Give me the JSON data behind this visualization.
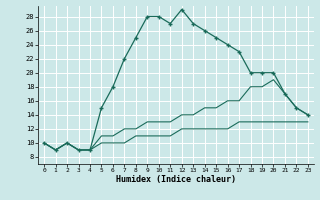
{
  "title": "",
  "xlabel": "Humidex (Indice chaleur)",
  "bg_color": "#cce8e8",
  "grid_color": "#ffffff",
  "line_color": "#1a6b5a",
  "xlim": [
    -0.5,
    23.5
  ],
  "ylim": [
    7,
    29.5
  ],
  "yticks": [
    8,
    10,
    12,
    14,
    16,
    18,
    20,
    22,
    24,
    26,
    28
  ],
  "xticks": [
    0,
    1,
    2,
    3,
    4,
    5,
    6,
    7,
    8,
    9,
    10,
    11,
    12,
    13,
    14,
    15,
    16,
    17,
    18,
    19,
    20,
    21,
    22,
    23
  ],
  "series1_x": [
    0,
    1,
    2,
    3,
    4,
    5,
    6,
    7,
    8,
    9,
    10,
    11,
    12,
    13,
    14,
    15,
    16,
    17,
    18,
    19,
    20,
    21,
    22,
    23
  ],
  "series1_y": [
    10,
    9,
    10,
    9,
    9,
    15,
    18,
    22,
    25,
    28,
    28,
    27,
    29,
    27,
    26,
    25,
    24,
    23,
    20,
    20,
    20,
    17,
    15,
    14
  ],
  "series2_x": [
    0,
    1,
    2,
    3,
    4,
    5,
    6,
    7,
    8,
    9,
    10,
    11,
    12,
    13,
    14,
    15,
    16,
    17,
    18,
    19,
    20,
    21,
    22,
    23
  ],
  "series2_y": [
    10,
    9,
    10,
    9,
    9,
    11,
    11,
    12,
    12,
    13,
    13,
    13,
    14,
    14,
    15,
    15,
    16,
    16,
    18,
    18,
    19,
    17,
    15,
    14
  ],
  "series3_x": [
    0,
    1,
    2,
    3,
    4,
    5,
    6,
    7,
    8,
    9,
    10,
    11,
    12,
    13,
    14,
    15,
    16,
    17,
    18,
    19,
    20,
    21,
    22,
    23
  ],
  "series3_y": [
    10,
    9,
    10,
    9,
    9,
    10,
    10,
    10,
    11,
    11,
    11,
    11,
    12,
    12,
    12,
    12,
    12,
    13,
    13,
    13,
    13,
    13,
    13,
    13
  ]
}
